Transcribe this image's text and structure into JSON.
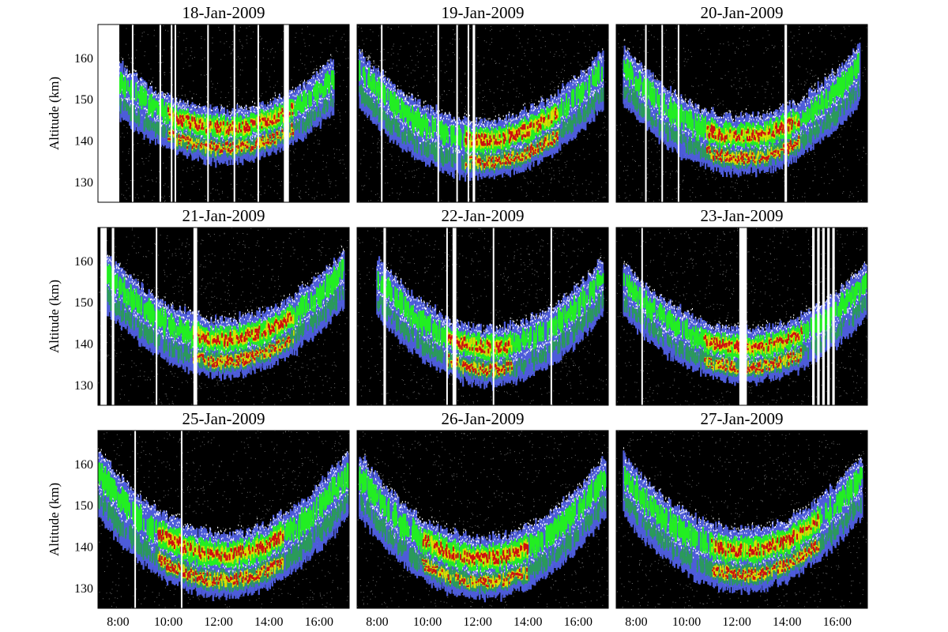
{
  "chart_data": {
    "type": "heatmap",
    "layout": "3x3 grid of echo panels",
    "ylabel": "Altitude (km)",
    "yticks": [
      130,
      140,
      150,
      160
    ],
    "ylim": [
      125,
      168
    ],
    "xticks": [
      "8:00",
      "10:00",
      "12:00",
      "14:00",
      "16:00"
    ],
    "xtick_hours": [
      8,
      10,
      12,
      14,
      16
    ],
    "xlim_hours": [
      7.2,
      17.2
    ],
    "background_color": "#000000",
    "colors": [
      "#ffffff",
      "#5a6cff",
      "#2a9a5a",
      "#22ee22",
      "#dddd00",
      "#cc1010"
    ],
    "panels": [
      {
        "title": "18-Jan-2009",
        "band": {
          "center_alt_at_noon": 143,
          "side_alt": 155,
          "start_hour": 7.9,
          "end_hour": 16.6,
          "width_km": 11,
          "core_hours": [
            10.0,
            15.0
          ]
        },
        "gaps_hours": [
          [
            7.2,
            8.05
          ],
          [
            8.55,
            8.6
          ],
          [
            9.65,
            9.7
          ],
          [
            10.1,
            10.15
          ],
          [
            10.25,
            10.3
          ],
          [
            11.55,
            11.6
          ],
          [
            12.6,
            12.65
          ],
          [
            13.55,
            13.6
          ],
          [
            14.6,
            14.8
          ]
        ]
      },
      {
        "title": "19-Jan-2009",
        "band": {
          "center_alt_at_noon": 140,
          "side_alt": 157,
          "start_hour": 7.3,
          "end_hour": 17.0,
          "width_km": 12,
          "core_hours": [
            11.5,
            15.2
          ]
        },
        "gaps_hours": [
          [
            8.15,
            8.2
          ],
          [
            10.4,
            10.45
          ],
          [
            11.15,
            11.2
          ],
          [
            11.6,
            11.65
          ],
          [
            11.8,
            11.9
          ]
        ]
      },
      {
        "title": "20-Jan-2009",
        "band": {
          "center_alt_at_noon": 141,
          "side_alt": 158,
          "start_hour": 7.5,
          "end_hour": 16.9,
          "width_km": 12,
          "core_hours": [
            10.8,
            14.5
          ]
        },
        "gaps_hours": [
          [
            8.35,
            8.4
          ],
          [
            9.0,
            9.05
          ],
          [
            9.65,
            9.7
          ],
          [
            13.9,
            14.0
          ]
        ]
      },
      {
        "title": "21-Jan-2009",
        "band": {
          "center_alt_at_noon": 141,
          "side_alt": 158,
          "start_hour": 7.4,
          "end_hour": 17.0,
          "width_km": 12,
          "core_hours": [
            11.0,
            15.0
          ]
        },
        "gaps_hours": [
          [
            7.3,
            7.55
          ],
          [
            7.75,
            7.85
          ],
          [
            9.5,
            9.55
          ],
          [
            11.0,
            11.15
          ]
        ]
      },
      {
        "title": "22-Jan-2009",
        "band": {
          "center_alt_at_noon": 139,
          "side_alt": 156,
          "start_hour": 8.0,
          "end_hour": 17.0,
          "width_km": 12,
          "core_hours": [
            10.8,
            13.4
          ]
        },
        "gaps_hours": [
          [
            8.25,
            8.35
          ],
          [
            10.75,
            10.8
          ],
          [
            11.0,
            11.15
          ],
          [
            12.6,
            12.65
          ],
          [
            14.9,
            14.95
          ]
        ]
      },
      {
        "title": "23-Jan-2009",
        "band": {
          "center_alt_at_noon": 139,
          "side_alt": 155,
          "start_hour": 7.5,
          "end_hour": 17.2,
          "width_km": 11,
          "core_hours": [
            10.7,
            14.6
          ]
        },
        "gaps_hours": [
          [
            8.2,
            8.25
          ],
          [
            12.1,
            12.4
          ],
          [
            15.0,
            15.1
          ],
          [
            15.2,
            15.3
          ],
          [
            15.4,
            15.5
          ],
          [
            15.6,
            15.7
          ],
          [
            15.8,
            15.9
          ]
        ]
      },
      {
        "title": "25-Jan-2009",
        "band": {
          "center_alt_at_noon": 138,
          "side_alt": 158,
          "start_hour": 7.2,
          "end_hour": 17.2,
          "width_km": 14,
          "core_hours": [
            9.6,
            14.6
          ]
        },
        "gaps_hours": [
          [
            8.65,
            8.7
          ],
          [
            10.5,
            10.55
          ]
        ]
      },
      {
        "title": "26-Jan-2009",
        "band": {
          "center_alt_at_noon": 137,
          "side_alt": 157,
          "start_hour": 7.3,
          "end_hour": 17.1,
          "width_km": 13,
          "core_hours": [
            9.8,
            14.0
          ]
        },
        "gaps_hours": []
      },
      {
        "title": "27-Jan-2009",
        "band": {
          "center_alt_at_noon": 139,
          "side_alt": 157,
          "start_hour": 7.5,
          "end_hour": 17.0,
          "width_km": 13,
          "core_hours": [
            11.0,
            15.3
          ]
        },
        "gaps_hours": []
      }
    ]
  }
}
